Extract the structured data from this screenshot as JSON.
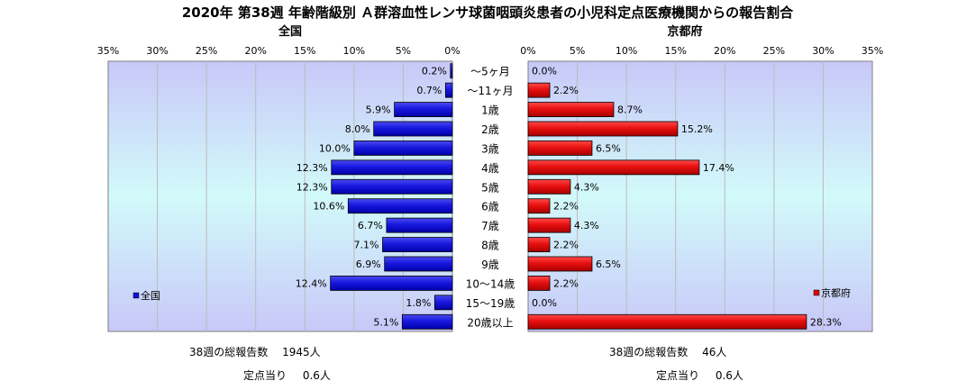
{
  "chart_data": {
    "type": "bar",
    "title": "2020年 第38週 年齢階級別 Ａ群溶血性レンサ球菌咽頭炎患者の小児科定点医療機関からの報告割合",
    "categories": [
      "～5ヶ月",
      "～11ヶ月",
      "1歳",
      "2歳",
      "3歳",
      "4歳",
      "5歳",
      "6歳",
      "7歳",
      "8歳",
      "9歳",
      "10～14歳",
      "15～19歳",
      "20歳以上"
    ],
    "x_ticks": [
      "35%",
      "30%",
      "25%",
      "20%",
      "15%",
      "10%",
      "5%",
      "0%"
    ],
    "x_ticks_right": [
      "0%",
      "5%",
      "10%",
      "15%",
      "20%",
      "25%",
      "30%",
      "35%"
    ],
    "xlim": [
      0,
      35
    ],
    "grid": true,
    "series": [
      {
        "name": "全国",
        "values": [
          0.2,
          0.7,
          5.9,
          8.0,
          10.0,
          12.3,
          12.3,
          10.6,
          6.7,
          7.1,
          6.9,
          12.4,
          1.8,
          5.1
        ],
        "labels": [
          "0.2%",
          "0.7%",
          "5.9%",
          "8.0%",
          "10.0%",
          "12.3%",
          "12.3%",
          "10.6%",
          "6.7%",
          "7.1%",
          "6.9%",
          "12.4%",
          "1.8%",
          "5.1%"
        ],
        "legend_position": "bottom-left"
      },
      {
        "name": "京都府",
        "values": [
          0.0,
          2.2,
          8.7,
          15.2,
          6.5,
          17.4,
          4.3,
          2.2,
          4.3,
          2.2,
          6.5,
          2.2,
          0.0,
          28.3
        ],
        "labels": [
          "0.0%",
          "2.2%",
          "8.7%",
          "15.2%",
          "6.5%",
          "17.4%",
          "4.3%",
          "2.2%",
          "4.3%",
          "2.2%",
          "6.5%",
          "2.2%",
          "0.0%",
          "28.3%"
        ],
        "legend_position": "bottom-right"
      }
    ],
    "colors": {
      "national_bar": "#1010d8",
      "kyoto_bar": "#e00000",
      "plot_bg_top": "#c8c8f8",
      "plot_bg_mid": "#d2fafa",
      "plot_bg_bottom": "#c8c8f8",
      "grid": "#bbbbbb"
    }
  },
  "panels": {
    "left_title": "全国",
    "right_title": "京都府"
  },
  "footer": {
    "left": {
      "total_label": "38週の総報告数",
      "total_value": "1945人",
      "per_label": "定点当り",
      "per_value": "0.6人"
    },
    "right": {
      "total_label": "38週の総報告数",
      "total_value": "46人",
      "per_label": "定点当り",
      "per_value": "0.6人"
    }
  }
}
